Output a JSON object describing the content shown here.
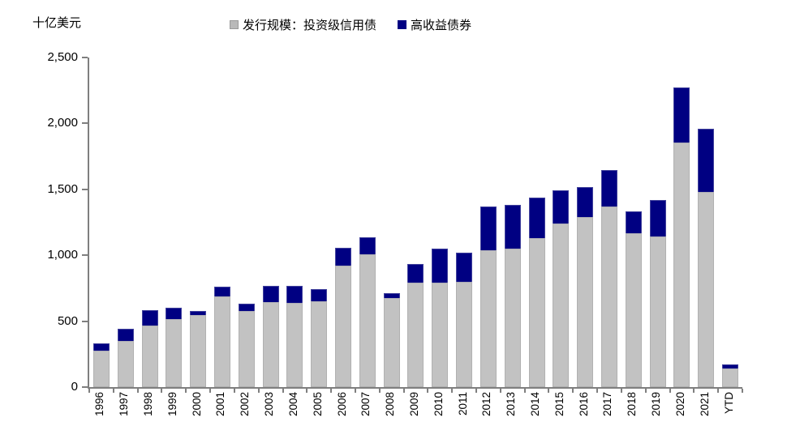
{
  "chart_data": {
    "type": "bar",
    "stacked": true,
    "unit_label": "十亿美元",
    "legend_position": "top",
    "grid": false,
    "ylim": [
      0,
      2500
    ],
    "ytick_values": [
      0,
      500,
      1000,
      1500,
      2000,
      2500
    ],
    "ytick_labels": [
      "0",
      "500",
      "1,000",
      "1,500",
      "2,000",
      "2,500"
    ],
    "categories": [
      "1996",
      "1997",
      "1998",
      "1999",
      "2000",
      "2001",
      "2002",
      "2003",
      "2004",
      "2005",
      "2006",
      "2007",
      "2008",
      "2009",
      "2010",
      "2011",
      "2012",
      "2013",
      "2014",
      "2015",
      "2016",
      "2017",
      "2018",
      "2019",
      "2020",
      "2021",
      "YTD"
    ],
    "series": [
      {
        "name": "发行规模：投资级信用债",
        "color": "#c2c2c2",
        "values": [
          275,
          350,
          470,
          515,
          545,
          690,
          575,
          645,
          640,
          650,
          920,
          1010,
          675,
          790,
          790,
          800,
          1040,
          1050,
          1130,
          1240,
          1290,
          1370,
          1165,
          1140,
          1855,
          1480,
          140
        ]
      },
      {
        "name": "高收益债券",
        "color": "#000082",
        "values": [
          55,
          95,
          115,
          85,
          30,
          75,
          55,
          125,
          130,
          95,
          135,
          125,
          35,
          145,
          260,
          220,
          330,
          330,
          310,
          250,
          230,
          275,
          165,
          280,
          420,
          480,
          35
        ]
      }
    ]
  }
}
